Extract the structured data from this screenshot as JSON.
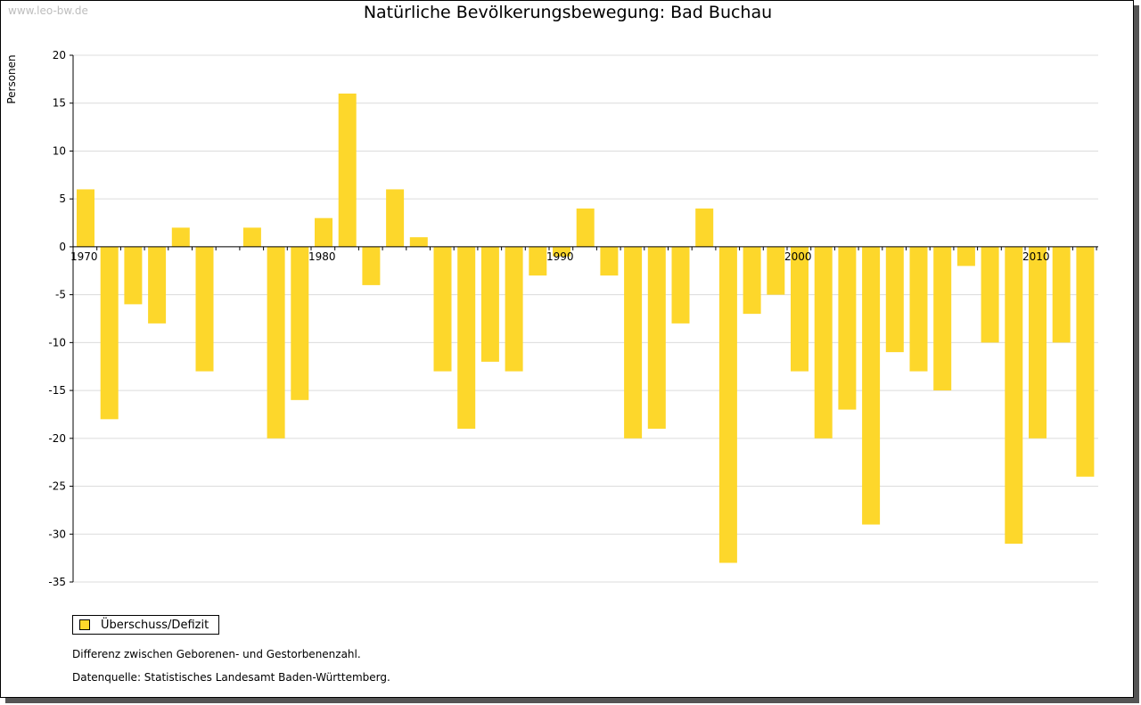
{
  "watermark": "www.leo-bw.de",
  "chart_data": {
    "type": "bar",
    "title": "Natürliche Bevölkerungsbewegung: Bad Buchau",
    "xlabel": "",
    "ylabel": "Personen",
    "x": [
      1970,
      1971,
      1972,
      1973,
      1974,
      1975,
      1976,
      1977,
      1978,
      1979,
      1980,
      1981,
      1982,
      1983,
      1984,
      1985,
      1986,
      1987,
      1988,
      1989,
      1990,
      1991,
      1992,
      1993,
      1994,
      1995,
      1996,
      1997,
      1998,
      1999,
      2000,
      2001,
      2002,
      2003,
      2004,
      2005,
      2006,
      2007,
      2008,
      2009,
      2010,
      2011,
      2012
    ],
    "series": [
      {
        "name": "Überschuss/Defizit",
        "color": "#fdd72b",
        "values": [
          6,
          -18,
          -6,
          -8,
          2,
          -13,
          0,
          2,
          -20,
          -16,
          3,
          16,
          -4,
          6,
          1,
          -13,
          -19,
          -12,
          -13,
          -3,
          -1,
          4,
          -3,
          -20,
          -19,
          -8,
          4,
          -33,
          -7,
          -5,
          -13,
          -20,
          -17,
          -29,
          -11,
          -13,
          -15,
          -2,
          -10,
          -31,
          -20,
          -10,
          -24
        ]
      }
    ],
    "x_tick_labels": [
      "1970",
      "1980",
      "1990",
      "2000",
      "2010"
    ],
    "y_ticks": [
      20,
      15,
      10,
      5,
      0,
      -5,
      -10,
      -15,
      -20,
      -25,
      -30,
      -35
    ],
    "ylim": [
      -35,
      20
    ],
    "grid": true,
    "legend_position": "bottom-left"
  },
  "notes": {
    "description": "Differenz zwischen Geborenen- und Gestorbenenzahl.",
    "source": "Datenquelle: Statistisches Landesamt Baden-Württemberg."
  }
}
